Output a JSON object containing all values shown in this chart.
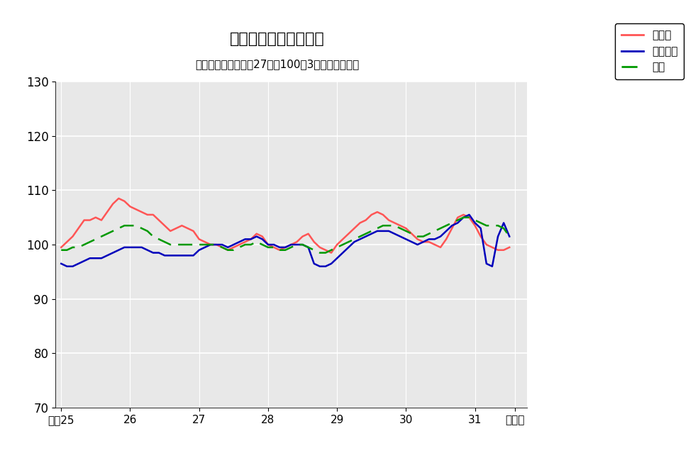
{
  "title": "鉱工業生産指数の推移",
  "subtitle": "（季節調整済、平成27年＝100、3ヶ月移動平均）",
  "ylim": [
    70,
    130
  ],
  "yticks": [
    70,
    80,
    90,
    100,
    110,
    120,
    130
  ],
  "plot_bg_color": "#e8e8e8",
  "x_tick_positions": [
    0,
    12,
    24,
    36,
    48,
    60,
    72,
    79
  ],
  "x_tick_labels": [
    "平成25",
    "26",
    "27",
    "28",
    "29",
    "30",
    "31",
    "令和元"
  ],
  "tottori": [
    99.5,
    100.5,
    101.5,
    103.0,
    104.5,
    104.5,
    105.0,
    104.5,
    106.0,
    107.5,
    108.5,
    108.0,
    107.0,
    106.5,
    106.0,
    105.5,
    105.5,
    104.5,
    103.5,
    102.5,
    103.0,
    103.5,
    103.0,
    102.5,
    101.0,
    100.5,
    100.0,
    100.0,
    99.5,
    99.0,
    99.5,
    100.0,
    100.5,
    101.0,
    102.0,
    101.5,
    100.0,
    99.5,
    99.0,
    99.5,
    100.0,
    100.5,
    101.5,
    102.0,
    100.5,
    99.5,
    99.0,
    98.5,
    100.0,
    101.0,
    102.0,
    103.0,
    104.0,
    104.5,
    105.5,
    106.0,
    105.5,
    104.5,
    104.0,
    103.5,
    103.0,
    102.0,
    101.0,
    100.5,
    100.5,
    100.0,
    99.5,
    101.0,
    103.0,
    105.0,
    105.5,
    105.0,
    103.5,
    101.5,
    100.0,
    99.5,
    99.0,
    99.0,
    99.5
  ],
  "chugoku": [
    96.5,
    96.0,
    96.0,
    96.5,
    97.0,
    97.5,
    97.5,
    97.5,
    98.0,
    98.5,
    99.0,
    99.5,
    99.5,
    99.5,
    99.5,
    99.0,
    98.5,
    98.5,
    98.0,
    98.0,
    98.0,
    98.0,
    98.0,
    98.0,
    99.0,
    99.5,
    100.0,
    100.0,
    100.0,
    99.5,
    100.0,
    100.5,
    101.0,
    101.0,
    101.5,
    101.0,
    100.0,
    100.0,
    99.5,
    99.5,
    100.0,
    100.0,
    100.0,
    99.5,
    96.5,
    96.0,
    96.0,
    96.5,
    97.5,
    98.5,
    99.5,
    100.5,
    101.0,
    101.5,
    102.0,
    102.5,
    102.5,
    102.5,
    102.0,
    101.5,
    101.0,
    100.5,
    100.0,
    100.5,
    101.0,
    101.0,
    101.5,
    102.5,
    103.5,
    104.0,
    105.0,
    105.5,
    104.0,
    103.0,
    96.5,
    96.0,
    101.5,
    104.0,
    101.5
  ],
  "zenkoku": [
    99.0,
    99.0,
    99.5,
    99.5,
    100.0,
    100.5,
    101.0,
    101.5,
    102.0,
    102.5,
    103.0,
    103.5,
    103.5,
    103.5,
    103.0,
    102.5,
    101.5,
    101.0,
    100.5,
    100.0,
    100.0,
    100.0,
    100.0,
    100.0,
    100.0,
    100.0,
    100.0,
    100.0,
    99.5,
    99.0,
    99.0,
    99.5,
    100.0,
    100.0,
    100.5,
    100.0,
    99.5,
    99.5,
    99.0,
    99.0,
    99.5,
    100.0,
    100.0,
    99.5,
    99.0,
    98.5,
    98.5,
    99.0,
    99.5,
    100.0,
    100.5,
    101.0,
    101.5,
    102.0,
    102.5,
    103.0,
    103.5,
    103.5,
    103.5,
    103.0,
    102.5,
    102.0,
    101.5,
    101.5,
    102.0,
    102.5,
    103.0,
    103.5,
    104.0,
    104.5,
    105.0,
    105.0,
    104.5,
    104.0,
    103.5,
    103.5,
    103.5,
    103.0,
    101.5
  ]
}
